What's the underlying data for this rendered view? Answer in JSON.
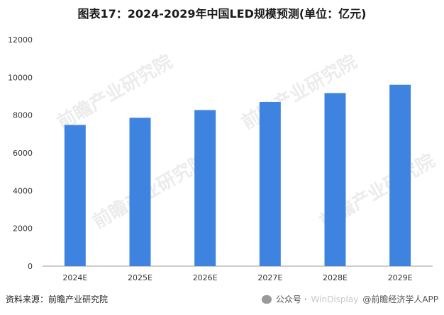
{
  "title": "图表17：2024-2029年中国LED规模预测(单位：亿元)",
  "source": "资料来源：前瞻产业研究院",
  "footer": {
    "wechat_label": "公众号 ·",
    "ghost_text": "WinDisplay",
    "brand": "@前瞻经济学人APP"
  },
  "watermark": "前瞻产业研究院",
  "colors": {
    "bar": "#3F83E0",
    "axis": "#999999"
  },
  "chart_data": {
    "type": "bar",
    "title": "图表17：2024-2029年中国LED规模预测(单位：亿元)",
    "categories": [
      "2024E",
      "2025E",
      "2026E",
      "2027E",
      "2028E",
      "2029E"
    ],
    "values": [
      7480,
      7860,
      8270,
      8700,
      9170,
      9610
    ],
    "ylim": [
      0,
      12000
    ],
    "yticks": [
      0,
      2000,
      4000,
      6000,
      8000,
      10000,
      12000
    ],
    "xlabel": "",
    "ylabel": "",
    "grid": false,
    "legend": "none"
  }
}
